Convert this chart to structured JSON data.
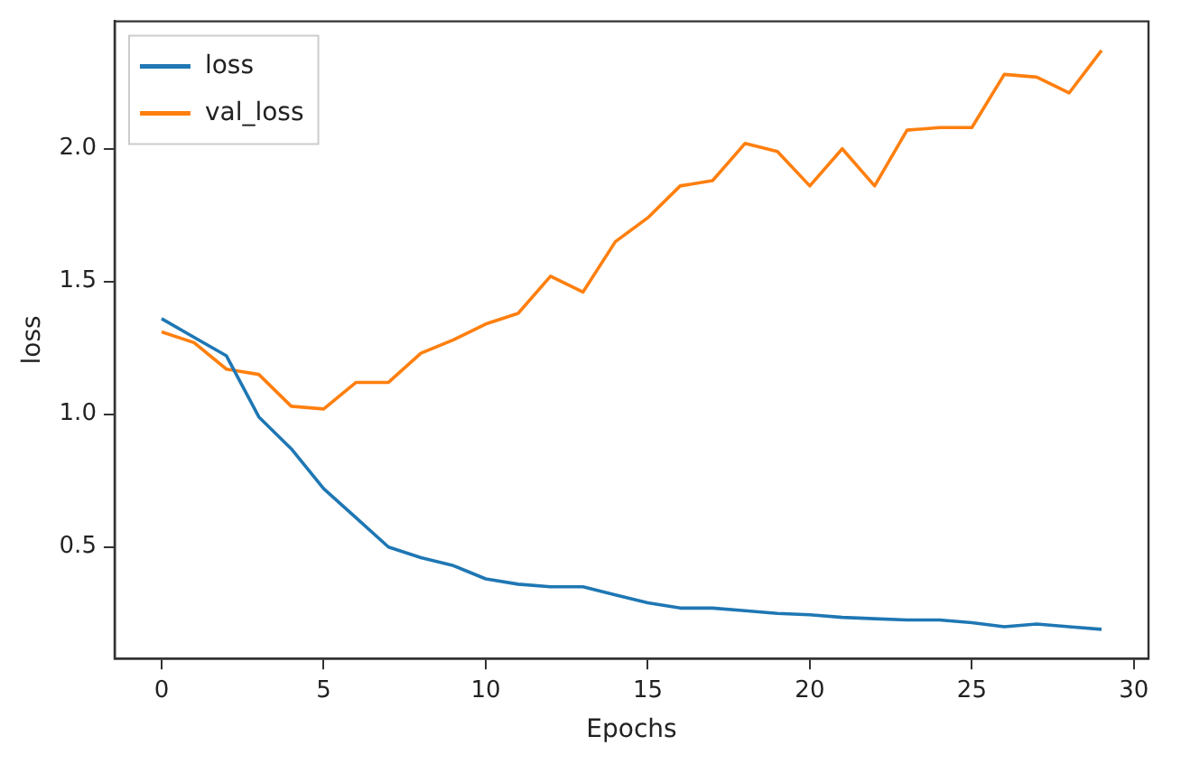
{
  "chart_data": {
    "type": "line",
    "xlabel": "Epochs",
    "ylabel": "loss",
    "x": [
      0,
      1,
      2,
      3,
      4,
      5,
      6,
      7,
      8,
      9,
      10,
      11,
      12,
      13,
      14,
      15,
      16,
      17,
      18,
      19,
      20,
      21,
      22,
      23,
      24,
      25,
      26,
      27,
      28,
      29
    ],
    "series": [
      {
        "name": "loss",
        "color": "#1f77b4",
        "values": [
          1.36,
          1.29,
          1.22,
          0.99,
          0.87,
          0.72,
          0.61,
          0.5,
          0.46,
          0.43,
          0.38,
          0.36,
          0.35,
          0.35,
          0.32,
          0.29,
          0.27,
          0.27,
          0.26,
          0.25,
          0.245,
          0.235,
          0.23,
          0.225,
          0.225,
          0.215,
          0.2,
          0.21,
          0.2,
          0.19
        ]
      },
      {
        "name": "val_loss",
        "color": "#ff7f0e",
        "values": [
          1.31,
          1.27,
          1.17,
          1.15,
          1.03,
          1.02,
          1.12,
          1.12,
          1.23,
          1.28,
          1.34,
          1.38,
          1.52,
          1.46,
          1.65,
          1.74,
          1.86,
          1.88,
          2.02,
          1.99,
          1.86,
          2.0,
          1.86,
          2.07,
          2.08,
          2.08,
          2.28,
          2.27,
          2.21,
          2.37
        ]
      }
    ],
    "xlim": [
      -1.45,
      30.45
    ],
    "xticks": [
      0,
      5,
      10,
      15,
      20,
      25,
      30
    ],
    "ylim": [
      0.08,
      2.48
    ],
    "yticks": [
      {
        "value": 0.5,
        "label": "0.5"
      },
      {
        "value": 1.0,
        "label": "1.0"
      },
      {
        "value": 1.5,
        "label": "1.5"
      },
      {
        "value": 2.0,
        "label": "2.0"
      }
    ],
    "legend": "top left",
    "grid": false,
    "marker": "none",
    "line_style": "solid"
  }
}
